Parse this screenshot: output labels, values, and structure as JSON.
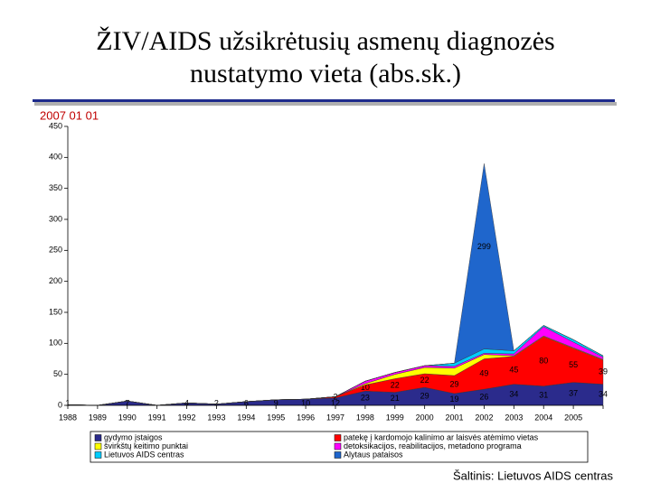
{
  "chart_data": {
    "type": "stacked-area",
    "title": [
      "ŽIV/AIDS užsikrėtusių asmenų diagnozės",
      "nustatymo vieta (abs.sk.)"
    ],
    "subtitle": "2007 01 01",
    "source": "Šaltinis: Lietuvos AIDS centras",
    "categories": [
      "1988",
      "1989",
      "1990",
      "1991",
      "1992",
      "1993",
      "1994",
      "1995",
      "1996",
      "1997",
      "1998",
      "1999",
      "2000",
      "2001",
      "2002",
      "2003",
      "2004",
      "2005",
      null
    ],
    "series": [
      {
        "name": "gydymo įstaigos",
        "color": "#2b2b8c",
        "values": [
          1,
          0,
          7,
          0,
          4,
          2,
          6,
          9,
          10,
          12,
          23,
          21,
          29,
          19,
          26,
          34,
          31,
          37,
          34
        ]
      },
      {
        "name": "patekę į kardomojo kalinimo ar laisvės atėmimo vietas",
        "color": "#ff0000",
        "values": [
          0,
          0,
          0,
          0,
          0,
          0,
          0,
          0,
          0,
          2,
          10,
          22,
          22,
          29,
          49,
          45,
          80,
          55,
          39
        ]
      },
      {
        "name": "švirkštų keitimo punktai",
        "color": "#ffff00",
        "values": [
          0,
          0,
          0,
          0,
          0,
          0,
          0,
          0,
          0,
          0,
          2,
          7,
          10,
          12,
          7,
          1,
          1,
          1,
          1
        ]
      },
      {
        "name": "detoksikacijos, reabilitacijos, metadono programa",
        "color": "#ff00ff",
        "values": [
          0,
          0,
          0,
          0,
          0,
          0,
          0,
          0,
          0,
          0,
          4,
          3,
          3,
          3,
          2,
          3,
          15,
          9,
          4
        ]
      },
      {
        "name": "Lietuvos AIDS centras",
        "color": "#00ccff",
        "values": [
          0,
          0,
          0,
          0,
          0,
          0,
          0,
          0,
          0,
          0,
          0,
          0,
          0,
          5,
          7,
          5,
          2,
          4,
          2
        ]
      },
      {
        "name": "Alytaus pataisos",
        "color": "#1f66cc",
        "values": [
          0,
          0,
          0,
          0,
          0,
          0,
          0,
          0,
          0,
          0,
          0,
          0,
          0,
          0,
          299,
          0,
          0,
          0,
          0
        ]
      }
    ],
    "ylim": [
      0,
      450
    ],
    "yticks": [
      0,
      50,
      100,
      150,
      200,
      250,
      300,
      350,
      400,
      450
    ],
    "grid": false
  }
}
